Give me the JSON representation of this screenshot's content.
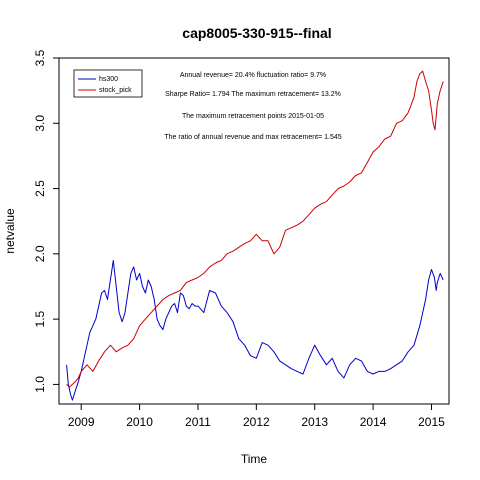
{
  "chart_data": {
    "type": "line",
    "title": "cap8005-330-915--final",
    "xlabel": "Time",
    "ylabel": "netvalue",
    "xlim": [
      2008.62,
      2015.3
    ],
    "ylim": [
      0.85,
      3.5
    ],
    "xticks": [
      "2009",
      "2010",
      "2011",
      "2012",
      "2013",
      "2014",
      "2015"
    ],
    "yticks": [
      "1.0",
      "1.5",
      "2.0",
      "2.5",
      "3.0",
      "3.5"
    ],
    "grid": false,
    "legend_position": "top-left",
    "annotations": [
      "Annual revenue=  20.4% fluctuation ratio= 9.7%",
      "Sharpe Ratio= 1.794 The maximum retracement= 13.2%",
      "The maximum retracement points 2015-01-05",
      "The ratio of annual revenue and max retracement= 1.545"
    ],
    "series": [
      {
        "name": "hs300",
        "color": "#0000cc",
        "x": [
          2008.75,
          2008.78,
          2008.82,
          2008.85,
          2008.9,
          2008.95,
          2009.0,
          2009.05,
          2009.1,
          2009.15,
          2009.2,
          2009.25,
          2009.3,
          2009.35,
          2009.4,
          2009.45,
          2009.5,
          2009.55,
          2009.6,
          2009.65,
          2009.7,
          2009.75,
          2009.8,
          2009.85,
          2009.9,
          2009.95,
          2010.0,
          2010.05,
          2010.1,
          2010.15,
          2010.2,
          2010.25,
          2010.3,
          2010.35,
          2010.4,
          2010.45,
          2010.5,
          2010.55,
          2010.6,
          2010.65,
          2010.7,
          2010.75,
          2010.8,
          2010.85,
          2010.9,
          2010.95,
          2011.0,
          2011.1,
          2011.2,
          2011.3,
          2011.4,
          2011.5,
          2011.6,
          2011.7,
          2011.8,
          2011.9,
          2012.0,
          2012.1,
          2012.2,
          2012.3,
          2012.4,
          2012.5,
          2012.6,
          2012.7,
          2012.8,
          2012.9,
          2013.0,
          2013.1,
          2013.2,
          2013.3,
          2013.4,
          2013.5,
          2013.6,
          2013.7,
          2013.8,
          2013.9,
          2014.0,
          2014.1,
          2014.2,
          2014.3,
          2014.4,
          2014.5,
          2014.6,
          2014.7,
          2014.8,
          2014.85,
          2014.9,
          2014.95,
          2015.0,
          2015.05,
          2015.08,
          2015.1,
          2015.15,
          2015.2
        ],
        "y": [
          1.15,
          1.0,
          0.92,
          0.88,
          0.95,
          1.02,
          1.1,
          1.2,
          1.3,
          1.4,
          1.45,
          1.5,
          1.6,
          1.7,
          1.72,
          1.65,
          1.8,
          1.95,
          1.75,
          1.55,
          1.48,
          1.55,
          1.7,
          1.85,
          1.9,
          1.8,
          1.85,
          1.75,
          1.7,
          1.8,
          1.75,
          1.65,
          1.5,
          1.45,
          1.42,
          1.5,
          1.55,
          1.6,
          1.62,
          1.55,
          1.7,
          1.68,
          1.6,
          1.58,
          1.62,
          1.6,
          1.6,
          1.55,
          1.72,
          1.7,
          1.6,
          1.55,
          1.48,
          1.35,
          1.3,
          1.22,
          1.2,
          1.32,
          1.3,
          1.25,
          1.18,
          1.15,
          1.12,
          1.1,
          1.08,
          1.2,
          1.3,
          1.22,
          1.15,
          1.2,
          1.1,
          1.05,
          1.15,
          1.2,
          1.18,
          1.1,
          1.08,
          1.1,
          1.1,
          1.12,
          1.15,
          1.18,
          1.25,
          1.3,
          1.45,
          1.55,
          1.65,
          1.8,
          1.88,
          1.82,
          1.72,
          1.78,
          1.85,
          1.8
        ]
      },
      {
        "name": "stock_pick",
        "color": "#cc0000",
        "x": [
          2008.75,
          2008.8,
          2008.85,
          2008.9,
          2008.95,
          2009.0,
          2009.1,
          2009.2,
          2009.3,
          2009.4,
          2009.5,
          2009.6,
          2009.7,
          2009.8,
          2009.9,
          2010.0,
          2010.1,
          2010.2,
          2010.3,
          2010.4,
          2010.5,
          2010.6,
          2010.7,
          2010.8,
          2010.9,
          2011.0,
          2011.1,
          2011.2,
          2011.3,
          2011.4,
          2011.5,
          2011.6,
          2011.7,
          2011.8,
          2011.9,
          2012.0,
          2012.1,
          2012.2,
          2012.3,
          2012.4,
          2012.5,
          2012.6,
          2012.7,
          2012.8,
          2012.9,
          2013.0,
          2013.1,
          2013.2,
          2013.3,
          2013.4,
          2013.5,
          2013.6,
          2013.7,
          2013.8,
          2013.9,
          2014.0,
          2014.1,
          2014.2,
          2014.3,
          2014.4,
          2014.5,
          2014.6,
          2014.7,
          2014.75,
          2014.8,
          2014.85,
          2014.9,
          2014.95,
          2015.0,
          2015.03,
          2015.06,
          2015.1,
          2015.15,
          2015.2
        ],
        "y": [
          1.0,
          0.98,
          1.0,
          1.02,
          1.05,
          1.1,
          1.15,
          1.1,
          1.18,
          1.25,
          1.3,
          1.25,
          1.28,
          1.3,
          1.35,
          1.45,
          1.5,
          1.55,
          1.6,
          1.65,
          1.68,
          1.7,
          1.72,
          1.78,
          1.8,
          1.82,
          1.85,
          1.9,
          1.93,
          1.95,
          2.0,
          2.02,
          2.05,
          2.08,
          2.1,
          2.15,
          2.1,
          2.1,
          2.0,
          2.05,
          2.18,
          2.2,
          2.22,
          2.25,
          2.3,
          2.35,
          2.38,
          2.4,
          2.45,
          2.5,
          2.52,
          2.55,
          2.6,
          2.62,
          2.7,
          2.78,
          2.82,
          2.88,
          2.9,
          3.0,
          3.02,
          3.08,
          3.2,
          3.32,
          3.38,
          3.4,
          3.32,
          3.25,
          3.1,
          3.0,
          2.95,
          3.15,
          3.25,
          3.32
        ]
      }
    ]
  }
}
